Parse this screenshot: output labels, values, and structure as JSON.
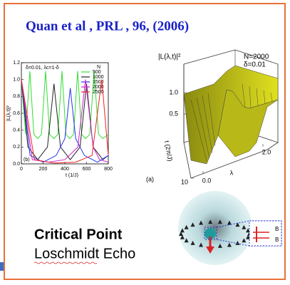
{
  "title": "Quan et al , PRL , 96, (2006)",
  "chart_data": [
    {
      "type": "line",
      "panel": "(b)",
      "annotation": "δ=0.01, λc=1-δ",
      "legend_title": "N",
      "xlabel": "t (1/J)",
      "ylabel": "|L(λ,t)|²",
      "xlim": [
        0,
        800
      ],
      "ylim": [
        0,
        1.2
      ],
      "xticks": [
        0,
        200,
        400,
        600,
        800
      ],
      "yticks": [
        {
          "value": 0,
          "label": "0.0"
        },
        0.2,
        0.4,
        0.6,
        0.8,
        {
          "value": 1,
          "label": "1.0"
        },
        1.2
      ],
      "series": [
        {
          "name": "500",
          "color": "#33dd33",
          "x": [
            0,
            40,
            78,
            115,
            150,
            185,
            223,
            260,
            300,
            335,
            374,
            410,
            445,
            480,
            518,
            555,
            590,
            630,
            669,
            710,
            750,
            800
          ],
          "values": [
            1.0,
            0.35,
            1.1,
            0.35,
            0.3,
            0.35,
            1.1,
            0.35,
            0.3,
            0.35,
            1.1,
            0.35,
            0.3,
            0.35,
            1.1,
            0.35,
            0.3,
            0.35,
            1.1,
            0.35,
            0.3,
            0.35
          ]
        },
        {
          "name": "1000",
          "color": "#222222",
          "x": [
            0,
            60,
            150,
            240,
            300,
            360,
            450,
            540,
            600,
            660,
            750,
            800
          ],
          "values": [
            1.0,
            0.2,
            0.05,
            0.2,
            0.95,
            0.2,
            0.05,
            0.2,
            0.95,
            0.2,
            0.05,
            0.1
          ]
        },
        {
          "name": "1500",
          "color": "#2233ee",
          "x": [
            0,
            80,
            200,
            320,
            400,
            450,
            500,
            580,
            700,
            800
          ],
          "values": [
            1.0,
            0.1,
            0.02,
            0.1,
            0.3,
            0.9,
            0.3,
            0.1,
            0.02,
            0.1
          ]
        },
        {
          "name": "2000",
          "color": "#cc22cc",
          "x": [
            0,
            100,
            250,
            400,
            520,
            590,
            660,
            720,
            800
          ],
          "values": [
            1.0,
            0.05,
            0.02,
            0.05,
            0.2,
            1.0,
            0.2,
            0.05,
            0.02
          ]
        },
        {
          "name": "2500",
          "color": "#ee2222",
          "x": [
            0,
            120,
            300,
            500,
            650,
            740,
            800
          ],
          "values": [
            1.0,
            0.05,
            0.01,
            0.02,
            0.1,
            1.0,
            0.1
          ]
        }
      ]
    },
    {
      "type": "surface",
      "panel": "(a)",
      "title": "|L(λ,t)|²",
      "annotations": [
        "N=2000",
        "δ=0.01"
      ],
      "xlabel": "λ",
      "ylabel": "t (2π/J)",
      "zticks": [
        0.5,
        {
          "value": 1,
          "label": "1.0"
        }
      ],
      "xticks": [
        {
          "value": 0,
          "label": "0.0"
        },
        {
          "value": 2,
          "label": "2.0"
        }
      ],
      "yticks": [
        10
      ]
    }
  ],
  "bullets": [
    "Critical Point",
    "Loschmidt Echo"
  ],
  "diagram": {
    "labels": [
      "B",
      "B"
    ]
  }
}
